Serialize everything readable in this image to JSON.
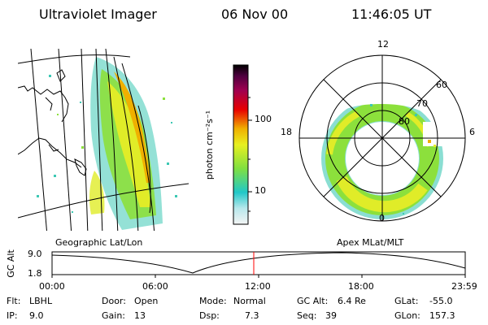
{
  "header": {
    "instrument": "Ultraviolet Imager",
    "date": "06 Nov 00",
    "time": "11:46:05 UT"
  },
  "map_label_left": "Geographic Lat/Lon",
  "map_label_right": "Apex MLat/MLT",
  "colorbar": {
    "label": "photon cm⁻²s⁻¹",
    "ticks": [
      "100",
      "10"
    ],
    "scale": "log"
  },
  "polar": {
    "mlt_labels": [
      "12",
      "18",
      "6",
      "0"
    ],
    "lat_labels": [
      "60",
      "70",
      "80"
    ]
  },
  "altitude_plot": {
    "ylabel": "GC Alt",
    "y_ticks": [
      "9.0",
      "1.8"
    ],
    "x_ticks": [
      "00:00",
      "06:00",
      "12:00",
      "18:00",
      "23:59"
    ],
    "marker_time": "11:46",
    "marker_color": "#ff0000"
  },
  "status": {
    "flt_label": "Flt:",
    "flt_value": "LBHL",
    "ip_label": "IP:",
    "ip_value": "9.0",
    "door_label": "Door:",
    "door_value": "Open",
    "gain_label": "Gain:",
    "gain_value": "13",
    "mode_label": "Mode:",
    "mode_value": "Normal",
    "dsp_label": "Dsp:",
    "dsp_value": "7.3",
    "gcalt_label": "GC Alt:",
    "gcalt_value": "6.4 Re",
    "seq_label": "Seq:",
    "seq_value": "39",
    "glat_label": "GLat:",
    "glat_value": "-55.0",
    "glon_label": "GLon:",
    "glon_value": "157.3"
  },
  "colors": {
    "colorbar_stops": [
      "#f4f4f4",
      "#b8e8ec",
      "#20c8c8",
      "#80e040",
      "#e8f020",
      "#f0b000",
      "#e80000",
      "#a00050",
      "#500040",
      "#000000"
    ]
  }
}
